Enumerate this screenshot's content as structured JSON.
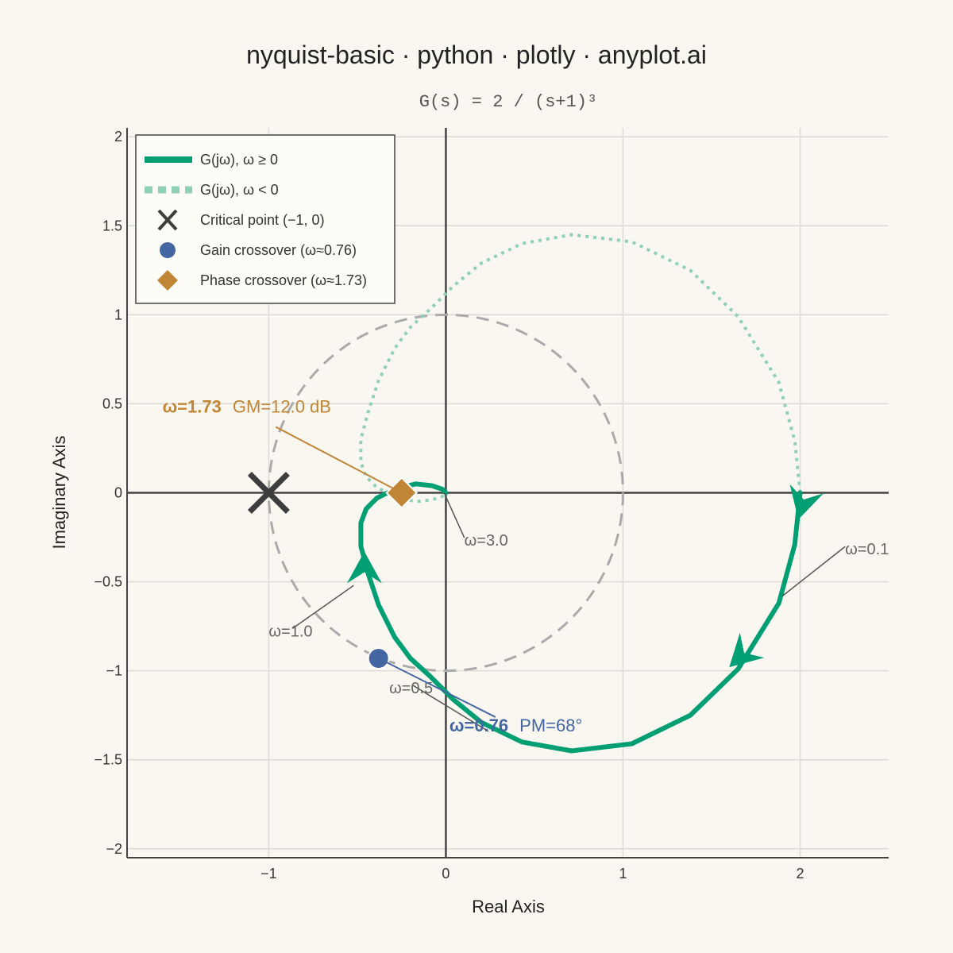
{
  "chart_data": {
    "type": "line",
    "title": "nyquist-basic · python · plotly · anyplot.ai",
    "subtitle": "G(s) = 2 / (s+1)³",
    "xlabel": "Real Axis",
    "ylabel": "Imaginary Axis",
    "xlim": [
      -1.8,
      2.5
    ],
    "ylim": [
      -2.05,
      2.05
    ],
    "x_ticks": [
      -1,
      0,
      1,
      2
    ],
    "x_tick_labels": [
      "−1",
      "0",
      "1",
      "2"
    ],
    "y_ticks": [
      2,
      1.5,
      1,
      0.5,
      0,
      -0.5,
      -1,
      -1.5,
      -2
    ],
    "y_tick_labels": [
      "2",
      "1.5",
      "1",
      "0.5",
      "0",
      "−0.5",
      "−1",
      "−1.5",
      "−2"
    ],
    "grid": true,
    "legend_position": "top-left",
    "colors": {
      "curve": "#009e73",
      "mirror": "#8fd0b6",
      "critical": "#3d3d3d",
      "gain": "#4466a3",
      "phase": "#c08535",
      "unit_circle": "#aaaaaa",
      "axis_line": "#444444",
      "grid": "#dcdad4"
    },
    "series": [
      {
        "name": "G(jω), ω ≥ 0",
        "x": [
          2.0,
          1.97,
          1.88,
          1.65,
          1.38,
          1.05,
          0.71,
          0.43,
          0.2,
          0.04,
          -0.09,
          -0.2,
          -0.29,
          -0.38,
          -0.44,
          -0.48,
          -0.48,
          -0.45,
          -0.39,
          -0.33,
          -0.25,
          -0.17,
          -0.08,
          -0.02,
          0.0
        ],
        "y": [
          0.0,
          -0.29,
          -0.62,
          -0.99,
          -1.25,
          -1.41,
          -1.45,
          -1.4,
          -1.29,
          -1.16,
          -1.03,
          -0.93,
          -0.81,
          -0.63,
          -0.45,
          -0.3,
          -0.17,
          -0.09,
          -0.03,
          0.0,
          0.03,
          0.05,
          0.04,
          0.02,
          0.0
        ]
      },
      {
        "name": "G(jω), ω < 0",
        "x": [
          2.0,
          1.97,
          1.88,
          1.65,
          1.38,
          1.05,
          0.71,
          0.43,
          0.2,
          0.04,
          -0.09,
          -0.2,
          -0.29,
          -0.38,
          -0.44,
          -0.48,
          -0.48,
          -0.45,
          -0.39,
          -0.33,
          -0.25,
          -0.17,
          -0.08,
          -0.02,
          0.0
        ],
        "y": [
          0.0,
          0.29,
          0.62,
          0.99,
          1.25,
          1.41,
          1.45,
          1.4,
          1.29,
          1.16,
          1.03,
          0.93,
          0.81,
          0.63,
          0.45,
          0.3,
          0.17,
          0.09,
          0.03,
          0.0,
          -0.03,
          -0.05,
          -0.04,
          -0.02,
          0.0
        ]
      }
    ],
    "arrows": [
      {
        "x": 1.99,
        "y": -0.15
      },
      {
        "x": 1.6,
        "y": -0.98
      },
      {
        "x": -0.46,
        "y": -0.33
      }
    ],
    "critical_point": {
      "name": "Critical point (−1, 0)",
      "x": -1,
      "y": 0
    },
    "gain_crossover": {
      "name": "Gain crossover (ω≈0.76)",
      "x": -0.38,
      "y": -0.93
    },
    "phase_crossover": {
      "name": "Phase crossover (ω≈1.73)",
      "x": -0.25,
      "y": 0.0
    },
    "unit_circle": {
      "center": [
        0,
        0
      ],
      "radius": 1
    },
    "frequency_labels": [
      {
        "text": "ω=0.1",
        "x": 2.29,
        "y": -0.32,
        "px": 1.9,
        "py": -0.58
      },
      {
        "text": "ω=0.5",
        "x": -0.32,
        "y": -1.1,
        "px": 0.24,
        "py": -1.34
      },
      {
        "text": "ω=1.0",
        "x": -1.0,
        "y": -0.78,
        "px": -0.52,
        "py": -0.52
      },
      {
        "text": "ω=3.0",
        "x": 0.14,
        "y": -0.27,
        "px": -0.01,
        "py": 0.0
      }
    ],
    "annotations": [
      {
        "bold": "ω=1.73",
        "text": "GM=12.0 dB",
        "x": -1.6,
        "y": 0.45,
        "px": -0.25,
        "py": 0.0,
        "lx": -0.96,
        "ly": 0.37
      },
      {
        "bold": "ω=0.76",
        "text": "PM=68°",
        "x": 0.02,
        "y": -1.34,
        "px": -0.38,
        "py": -0.93,
        "lx": 0.28,
        "ly": -1.26
      }
    ]
  },
  "legend": {
    "items": [
      "G(jω), ω ≥ 0",
      "G(jω), ω < 0",
      "Critical point (−1, 0)",
      "Gain crossover (ω≈0.76)",
      "Phase crossover (ω≈1.73)"
    ]
  }
}
